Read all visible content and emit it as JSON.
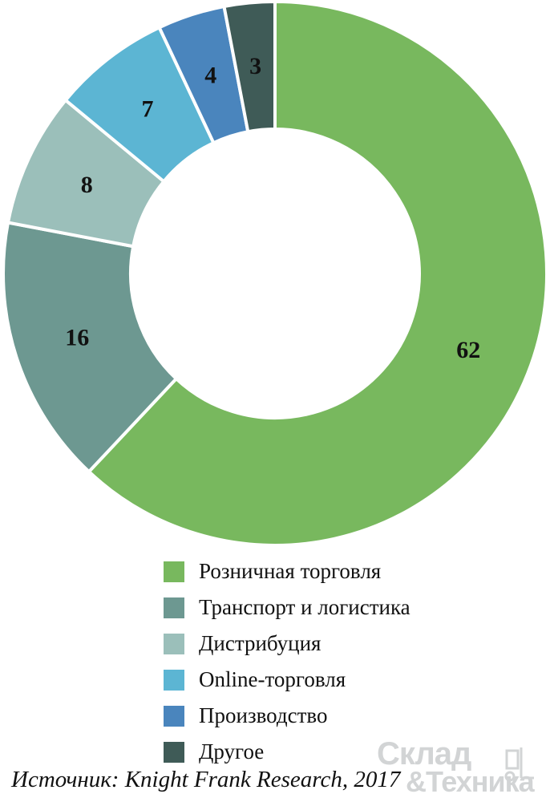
{
  "chart_data": {
    "type": "pie",
    "variant": "donut",
    "categories": [
      "Розничная торговля",
      "Транспорт и логистика",
      "Дистрибуция",
      "Online-торговля",
      "Производство",
      "Другое"
    ],
    "values": [
      62,
      16,
      8,
      7,
      4,
      3
    ],
    "value_labels": [
      "62",
      "16",
      "8",
      "7",
      "4",
      "3"
    ],
    "colors": [
      "#78b85e",
      "#6d9891",
      "#9bbfba",
      "#5cb5d3",
      "#4a85bd",
      "#3f5b57"
    ],
    "legend_position": "bottom"
  },
  "source": "Источник: Knight Frank Research, 2017",
  "watermark": {
    "line1": "Склад",
    "line2": "&Техника"
  }
}
